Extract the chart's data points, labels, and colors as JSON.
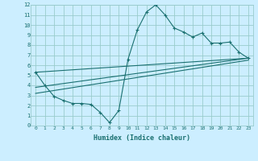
{
  "title": "",
  "xlabel": "Humidex (Indice chaleur)",
  "bg_color": "#cceeff",
  "grid_color": "#99cccc",
  "line_color": "#1a7070",
  "xlim": [
    -0.5,
    23.5
  ],
  "ylim": [
    0,
    12
  ],
  "xticks": [
    0,
    1,
    2,
    3,
    4,
    5,
    6,
    7,
    8,
    9,
    10,
    11,
    12,
    13,
    14,
    15,
    16,
    17,
    18,
    19,
    20,
    21,
    22,
    23
  ],
  "yticks": [
    0,
    1,
    2,
    3,
    4,
    5,
    6,
    7,
    8,
    9,
    10,
    11,
    12
  ],
  "series": [
    [
      0,
      5.3
    ],
    [
      1,
      4.0
    ],
    [
      2,
      2.9
    ],
    [
      3,
      2.5
    ],
    [
      4,
      2.2
    ],
    [
      5,
      2.2
    ],
    [
      6,
      2.1
    ],
    [
      7,
      1.3
    ],
    [
      8,
      0.3
    ],
    [
      9,
      1.5
    ],
    [
      10,
      6.6
    ],
    [
      11,
      9.5
    ],
    [
      12,
      11.3
    ],
    [
      13,
      12.0
    ],
    [
      14,
      11.0
    ],
    [
      15,
      9.7
    ],
    [
      16,
      9.3
    ],
    [
      17,
      8.8
    ],
    [
      18,
      9.2
    ],
    [
      19,
      8.2
    ],
    [
      20,
      8.2
    ],
    [
      21,
      8.3
    ],
    [
      22,
      7.3
    ],
    [
      23,
      6.7
    ]
  ],
  "line2": [
    [
      0,
      5.3
    ],
    [
      23,
      6.7
    ]
  ],
  "line3": [
    [
      0,
      3.8
    ],
    [
      23,
      6.7
    ]
  ],
  "line4": [
    [
      0,
      3.2
    ],
    [
      23,
      6.5
    ]
  ]
}
